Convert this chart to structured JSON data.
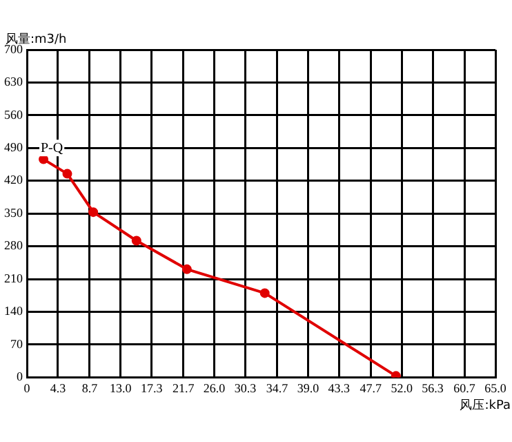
{
  "chart_data": {
    "type": "line",
    "xlabel": "风压:kPa",
    "ylabel": "风量:m3/h",
    "x": [
      2.3,
      5.6,
      9.2,
      15.2,
      22.2,
      33,
      51.2
    ],
    "series": [
      {
        "values": [
          466,
          435,
          353,
          292,
          231,
          180,
          3
        ],
        "color": "#e00000"
      }
    ],
    "marker": "circle",
    "xlim": [
      0,
      65
    ],
    "ylim": [
      0,
      700
    ],
    "xticks": [
      0,
      4.3,
      8.7,
      {
        "value": 13,
        "label": "13.0"
      },
      17.3,
      21.7,
      {
        "value": 26,
        "label": "26.0"
      },
      30.3,
      34.7,
      {
        "value": 39,
        "label": "39.0"
      },
      43.3,
      47.7,
      {
        "value": 52,
        "label": "52.0"
      },
      56.3,
      60.7,
      {
        "value": 65,
        "label": "65.0"
      }
    ],
    "yticks": [
      0,
      70,
      140,
      210,
      280,
      350,
      420,
      490,
      560,
      630,
      700
    ],
    "grid": true,
    "legend": false,
    "annotations": [
      "P-Q"
    ]
  }
}
